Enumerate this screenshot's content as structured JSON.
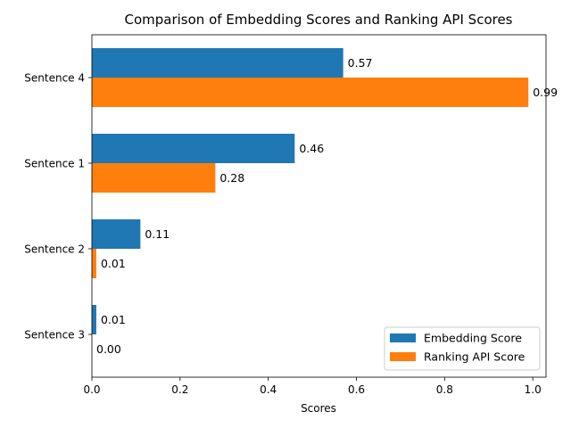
{
  "chart_data": {
    "type": "bar",
    "orientation": "horizontal",
    "title": "Comparison of Embedding Scores and Ranking API Scores",
    "xlabel": "Scores",
    "ylabel": "",
    "categories": [
      "Sentence 4",
      "Sentence 1",
      "Sentence 2",
      "Sentence 3"
    ],
    "series": [
      {
        "name": "Embedding Score",
        "color": "#1f77b4",
        "values": [
          0.57,
          0.46,
          0.11,
          0.01
        ],
        "labels": [
          "0.57",
          "0.46",
          "0.11",
          "0.01"
        ]
      },
      {
        "name": "Ranking API Score",
        "color": "#ff7f0e",
        "values": [
          0.99,
          0.28,
          0.01,
          0.0
        ],
        "labels": [
          "0.99",
          "0.28",
          "0.01",
          "0.00"
        ]
      }
    ],
    "xlim": [
      0,
      1.03
    ],
    "xticks": [
      0,
      0.2,
      0.4,
      0.6,
      0.8,
      1.0
    ],
    "xtick_labels": [
      "0.0",
      "0.2",
      "0.4",
      "0.6",
      "0.8",
      "1.0"
    ],
    "grid": false,
    "legend_position": "lower-right"
  }
}
